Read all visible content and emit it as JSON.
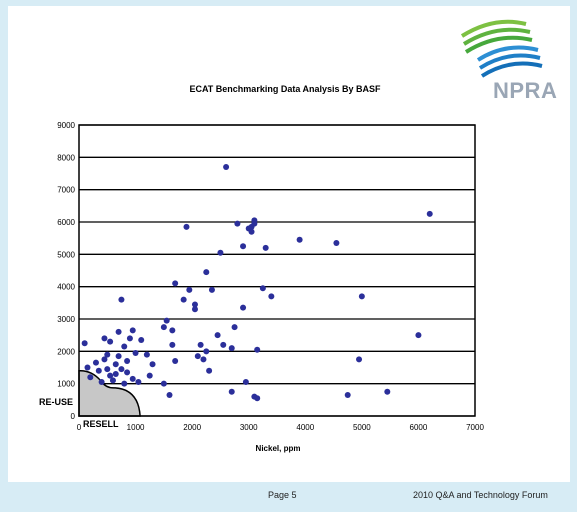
{
  "logo": {
    "text": "NPRA"
  },
  "footer": {
    "page": "Page 5",
    "event": "2010 Q&A and Technology Forum"
  },
  "colors": {
    "background": "#d7ecf5",
    "points": "#2b2f9a",
    "region": "#c7c7c7"
  },
  "chart_data": {
    "type": "scatter",
    "title": "ECAT Benchmarking  Data Analysis By  BASF",
    "xlabel": "Nickel, ppm",
    "ylabel": "",
    "xlim": [
      0,
      7000
    ],
    "ylim": [
      0,
      9000
    ],
    "xticks": [
      "0",
      "1000",
      "2000",
      "3000",
      "4000",
      "5000",
      "6000",
      "7000"
    ],
    "yticks": [
      "0",
      "1000",
      "2000",
      "3000",
      "4000",
      "5000",
      "6000",
      "7000",
      "8000",
      "9000"
    ],
    "grid": "horizontal",
    "annotations": {
      "reuse": "RE-USE",
      "resell": "RESELL"
    },
    "points": [
      [
        100,
        2250
      ],
      [
        150,
        1500
      ],
      [
        200,
        1200
      ],
      [
        300,
        1650
      ],
      [
        350,
        1400
      ],
      [
        400,
        1050
      ],
      [
        450,
        2400
      ],
      [
        450,
        1750
      ],
      [
        500,
        1900
      ],
      [
        500,
        1450
      ],
      [
        550,
        1250
      ],
      [
        550,
        2300
      ],
      [
        600,
        1100
      ],
      [
        650,
        1600
      ],
      [
        650,
        1300
      ],
      [
        700,
        2600
      ],
      [
        700,
        1850
      ],
      [
        750,
        1450
      ],
      [
        750,
        3600
      ],
      [
        800,
        2150
      ],
      [
        800,
        1000
      ],
      [
        850,
        1700
      ],
      [
        850,
        1350
      ],
      [
        900,
        2400
      ],
      [
        950,
        1150
      ],
      [
        950,
        2650
      ],
      [
        1000,
        1950
      ],
      [
        1050,
        1050
      ],
      [
        1100,
        2350
      ],
      [
        1200,
        1900
      ],
      [
        1250,
        1250
      ],
      [
        1300,
        1600
      ],
      [
        1500,
        2750
      ],
      [
        1500,
        1000
      ],
      [
        1550,
        2950
      ],
      [
        1600,
        650
      ],
      [
        1650,
        2200
      ],
      [
        1650,
        2650
      ],
      [
        1700,
        1700
      ],
      [
        1700,
        4100
      ],
      [
        1850,
        3600
      ],
      [
        1900,
        5850
      ],
      [
        1950,
        3900
      ],
      [
        2050,
        3450
      ],
      [
        2050,
        3300
      ],
      [
        2100,
        1850
      ],
      [
        2150,
        2200
      ],
      [
        2200,
        1750
      ],
      [
        2250,
        2000
      ],
      [
        2250,
        4450
      ],
      [
        2300,
        1400
      ],
      [
        2350,
        3900
      ],
      [
        2450,
        2500
      ],
      [
        2550,
        2200
      ],
      [
        2500,
        5050
      ],
      [
        2600,
        7700
      ],
      [
        2700,
        750
      ],
      [
        2700,
        2100
      ],
      [
        2750,
        2750
      ],
      [
        2800,
        5950
      ],
      [
        2900,
        3350
      ],
      [
        2900,
        5250
      ],
      [
        2950,
        1050
      ],
      [
        3000,
        5800
      ],
      [
        3050,
        5700
      ],
      [
        3050,
        5850
      ],
      [
        3100,
        6050
      ],
      [
        3100,
        5950
      ],
      [
        3100,
        600
      ],
      [
        3150,
        2050
      ],
      [
        3150,
        550
      ],
      [
        3250,
        3950
      ],
      [
        3300,
        5200
      ],
      [
        3400,
        3700
      ],
      [
        3900,
        5450
      ],
      [
        4550,
        5350
      ],
      [
        4750,
        650
      ],
      [
        4950,
        1750
      ],
      [
        5000,
        3700
      ],
      [
        5450,
        750
      ],
      [
        6000,
        2500
      ],
      [
        6200,
        6250
      ]
    ]
  }
}
